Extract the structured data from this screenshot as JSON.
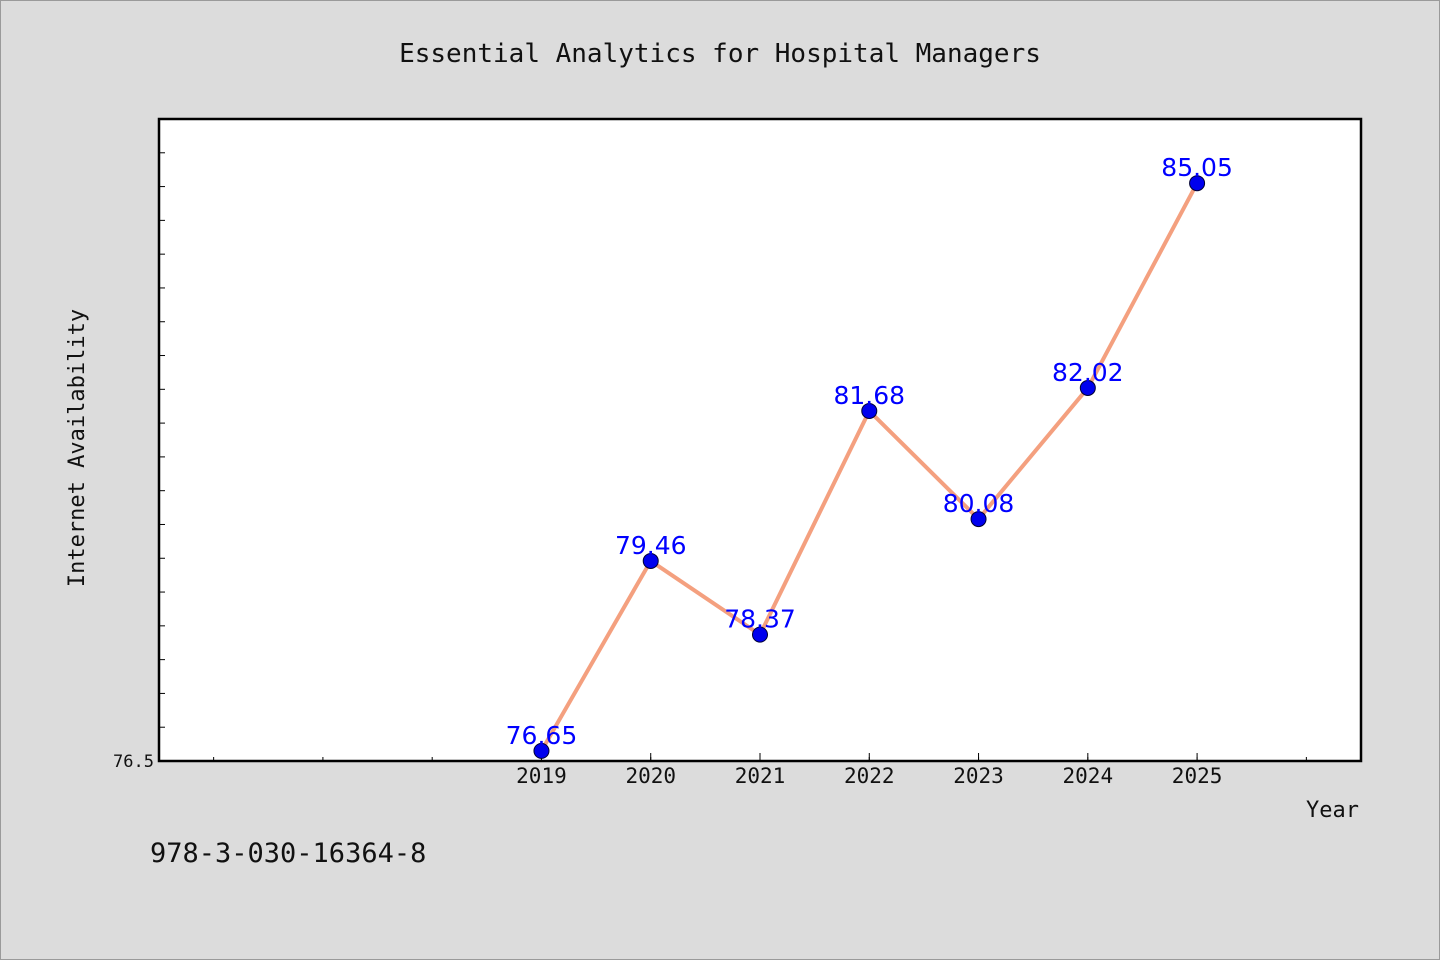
{
  "chart_data": {
    "type": "line",
    "title": "Essential Analytics for Hospital Managers",
    "xlabel": "Year",
    "ylabel": "Internet Availability",
    "categories": [
      "2019",
      "2020",
      "2021",
      "2022",
      "2023",
      "2024",
      "2025"
    ],
    "series": [
      {
        "values": [
          76.65,
          79.46,
          78.37,
          81.68,
          80.08,
          82.02,
          85.05
        ],
        "labels": [
          "76.65",
          "79.46",
          "78.37",
          "81.68",
          "80.08",
          "82.02",
          "85.05"
        ]
      }
    ],
    "y_tick_labels": [
      "76.5"
    ],
    "ylim": [
      76.5,
      86.0
    ],
    "xlim": [
      2015.5,
      2026.5
    ],
    "grid": false,
    "line_color": "#f4a07f",
    "marker_color": "#0000ee",
    "label_color": "#0000ff"
  },
  "footer": {
    "isbn": "978-3-030-16364-8"
  }
}
